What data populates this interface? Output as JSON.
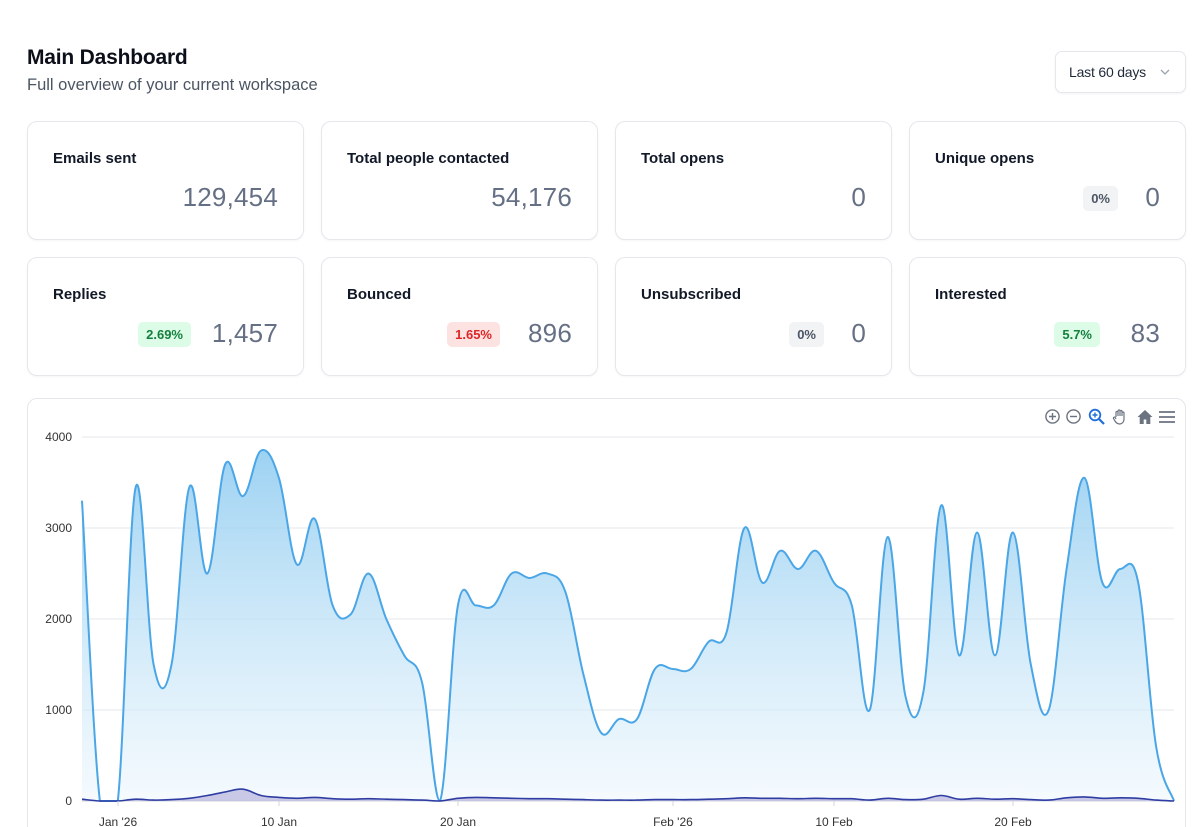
{
  "header": {
    "title": "Main Dashboard",
    "subtitle": "Full overview of your current workspace"
  },
  "range_select": {
    "value": "Last 60 days",
    "icon": "chevron-down-icon"
  },
  "cards": [
    {
      "label": "Emails sent",
      "value": "129,454",
      "badge": null
    },
    {
      "label": "Total people contacted",
      "value": "54,176",
      "badge": null
    },
    {
      "label": "Total opens",
      "value": "0",
      "badge": null
    },
    {
      "label": "Unique opens",
      "value": "0",
      "badge": "0%",
      "badge_tone": "neutral"
    },
    {
      "label": "Replies",
      "value": "1,457",
      "badge": "2.69%",
      "badge_tone": "green"
    },
    {
      "label": "Bounced",
      "value": "896",
      "badge": "1.65%",
      "badge_tone": "red"
    },
    {
      "label": "Unsubscribed",
      "value": "0",
      "badge": "0%",
      "badge_tone": "neutral"
    },
    {
      "label": "Interested",
      "value": "83",
      "badge": "5.7%",
      "badge_tone": "green"
    }
  ],
  "toolbar": [
    "zoom-in-icon",
    "zoom-out-icon",
    "selection-zoom-icon",
    "pan-hand-icon",
    "reset-home-icon",
    "menu-icon"
  ],
  "colors": {
    "main_series": "#4aa6e6",
    "small_series": "#2f3da3",
    "green_badge_bg": "#dcfce7",
    "red_badge_bg": "#fde2e2"
  },
  "chart_data": {
    "type": "area",
    "x_tick_labels": [
      "Jan '26",
      "10 Jan",
      "20 Jan",
      "Feb '26",
      "10 Feb",
      "20 Feb"
    ],
    "y_tick_labels": [
      "0",
      "1000",
      "2000",
      "3000",
      "4000"
    ],
    "ylim": [
      0,
      4000
    ],
    "grid": true,
    "series": [
      {
        "values": [
          3300,
          0,
          0,
          3450,
          1500,
          1500,
          3450,
          2500,
          3700,
          3350,
          3850,
          3550,
          2600,
          3100,
          2150,
          2050,
          2500,
          2000,
          1600,
          1300,
          0,
          2150,
          2150,
          2150,
          2500,
          2450,
          2500,
          2300,
          1400,
          750,
          900,
          900,
          1450,
          1450,
          1450,
          1750,
          1850,
          3000,
          2400,
          2750,
          2550,
          2750,
          2400,
          2150,
          1000,
          2900,
          1150,
          1200,
          3250,
          1600,
          2950,
          1600,
          2950,
          1500,
          1000,
          2550,
          3550,
          2400,
          2550,
          2400,
          600,
          0
        ]
      },
      {
        "values": [
          20,
          0,
          0,
          20,
          10,
          15,
          30,
          60,
          100,
          130,
          60,
          40,
          30,
          40,
          25,
          20,
          25,
          20,
          15,
          10,
          0,
          30,
          40,
          35,
          30,
          25,
          25,
          20,
          15,
          10,
          10,
          10,
          15,
          15,
          15,
          20,
          25,
          35,
          30,
          30,
          25,
          30,
          25,
          25,
          10,
          30,
          15,
          20,
          60,
          20,
          30,
          20,
          25,
          15,
          10,
          35,
          45,
          30,
          35,
          30,
          10,
          0
        ]
      }
    ]
  }
}
